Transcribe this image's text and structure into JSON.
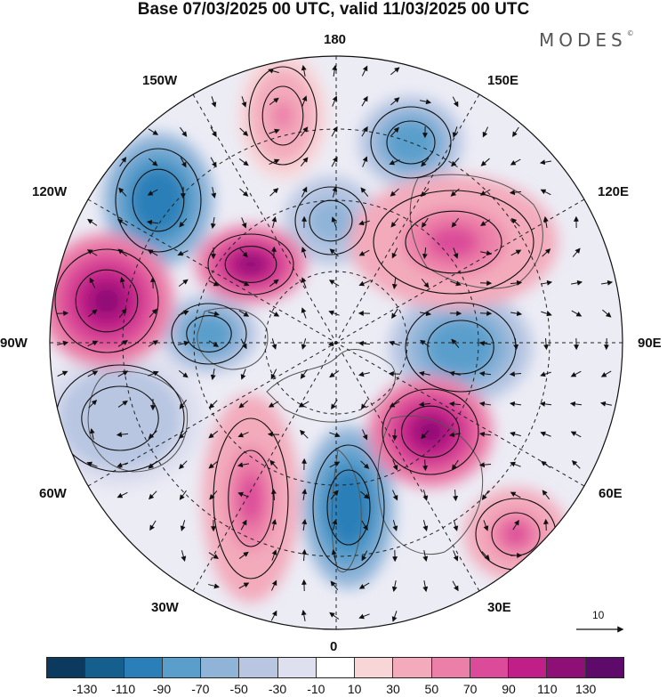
{
  "title": "Base 07/03/2025 00 UTC, valid 11/03/2025 00 UTC",
  "brand": "MODES",
  "brand_mark": "©",
  "longitude_labels": {
    "top": "180",
    "bottom": "0",
    "left": "90W",
    "right": "90E",
    "upper_left_1": "150W",
    "upper_left_2": "120W",
    "lower_left_1": "60W",
    "lower_left_2": "30W",
    "upper_right_1": "150E",
    "upper_right_2": "120E",
    "lower_right_1": "60E",
    "lower_right_2": "30E"
  },
  "reference_vector_label": "10",
  "colorbar": {
    "colors": [
      "#0b3a5e",
      "#155f8e",
      "#2b7fb8",
      "#5a9fcc",
      "#8fb4d8",
      "#b8c6e2",
      "#dedfef",
      "#ffffff",
      "#f8d5d7",
      "#f3abbc",
      "#ec7fa8",
      "#dc4b99",
      "#bf1f86",
      "#8e0f76",
      "#5e0a6b"
    ],
    "tick_labels": [
      "-130",
      "-110",
      "-90",
      "-70",
      "-50",
      "-30",
      "-10",
      "10",
      "30",
      "50",
      "70",
      "90",
      "110",
      "130"
    ]
  },
  "anomaly_centers": [
    {
      "sign": "neg",
      "level": -110
    },
    {
      "sign": "neg",
      "level": -90
    },
    {
      "sign": "neg",
      "level": -70
    },
    {
      "sign": "neg",
      "level": -90
    },
    {
      "sign": "neg",
      "level": -90
    },
    {
      "sign": "neg",
      "level": -50
    },
    {
      "sign": "neg",
      "level": -110
    },
    {
      "sign": "pos",
      "level": 110
    },
    {
      "sign": "pos",
      "level": 110
    },
    {
      "sign": "pos",
      "level": 70
    },
    {
      "sign": "pos",
      "level": 110
    },
    {
      "sign": "pos",
      "level": 70
    },
    {
      "sign": "pos",
      "level": 50
    },
    {
      "sign": "pos",
      "level": 70
    }
  ]
}
